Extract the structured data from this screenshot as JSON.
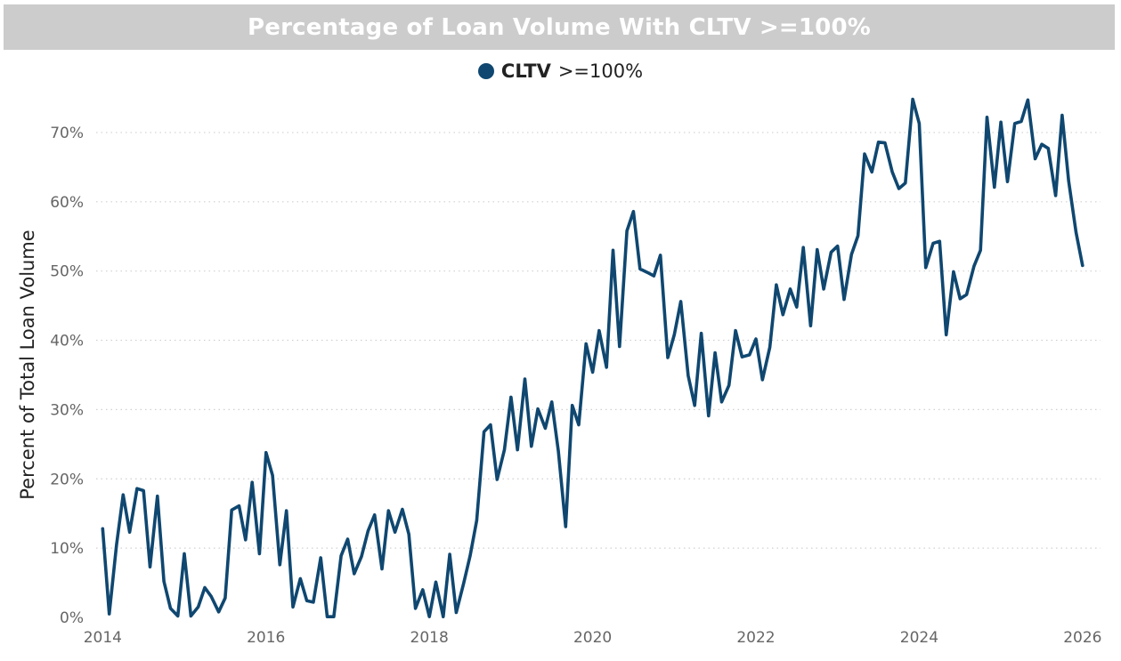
{
  "chart_data": {
    "type": "line",
    "title": "Percentage of Loan Volume With CLTV >=100%",
    "xlabel": "",
    "ylabel": "Percent of Total Loan Volume",
    "xlim": [
      2013.92,
      2026.22
    ],
    "ylim": [
      0,
      75
    ],
    "x_ticks": [
      "2014",
      "2016",
      "2018",
      "2020",
      "2022",
      "2024",
      "2026"
    ],
    "y_ticks": [
      "0%",
      "10%",
      "20%",
      "30%",
      "40%",
      "50%",
      "60%",
      "70%"
    ],
    "grid": "horizontal-dotted",
    "legend": {
      "position": "top-center",
      "bold_part": "CLTV",
      "rest": ">=100%"
    },
    "colors": {
      "line": "#0f4770",
      "title_bar": "#cccccc",
      "grid": "#d0d0d0"
    },
    "series": [
      {
        "name": "CLTV >=100%",
        "x": [
          2014.0,
          2014.08,
          2014.17,
          2014.25,
          2014.33,
          2014.42,
          2014.5,
          2014.58,
          2014.67,
          2014.75,
          2014.83,
          2014.92,
          2015.0,
          2015.08,
          2015.17,
          2015.25,
          2015.33,
          2015.42,
          2015.5,
          2015.58,
          2015.67,
          2015.75,
          2015.83,
          2015.92,
          2016.0,
          2016.08,
          2016.17,
          2016.25,
          2016.33,
          2016.42,
          2016.5,
          2016.58,
          2016.67,
          2016.75,
          2016.83,
          2016.92,
          2017.0,
          2017.08,
          2017.17,
          2017.25,
          2017.33,
          2017.42,
          2017.5,
          2017.58,
          2017.67,
          2017.75,
          2017.83,
          2017.92,
          2018.0,
          2018.08,
          2018.17,
          2018.25,
          2018.33,
          2018.42,
          2018.5,
          2018.58,
          2018.67,
          2018.75,
          2018.83,
          2018.92,
          2019.0,
          2019.08,
          2019.17,
          2019.25,
          2019.33,
          2019.42,
          2019.5,
          2019.58,
          2019.67,
          2019.75,
          2019.83,
          2019.92,
          2020.0,
          2020.08,
          2020.17,
          2020.25,
          2020.33,
          2020.42,
          2020.5,
          2020.58,
          2020.67,
          2020.75,
          2020.83,
          2020.92,
          2021.0,
          2021.08,
          2021.17,
          2021.25,
          2021.33,
          2021.42,
          2021.5,
          2021.58,
          2021.67,
          2021.75,
          2021.83,
          2021.92,
          2022.0,
          2022.08,
          2022.17,
          2022.25,
          2022.33,
          2022.42,
          2022.5,
          2022.58,
          2022.67,
          2022.75,
          2022.83,
          2022.92,
          2023.0,
          2023.08,
          2023.17,
          2023.25,
          2023.33,
          2023.42,
          2023.5,
          2023.58,
          2023.67,
          2023.75,
          2023.83,
          2023.92,
          2024.0,
          2024.08,
          2024.17,
          2024.25,
          2024.33,
          2024.42,
          2024.5,
          2024.58,
          2024.67,
          2024.75,
          2024.83,
          2024.92,
          2025.0,
          2025.08,
          2025.17,
          2025.25,
          2025.33,
          2025.42,
          2025.5,
          2025.58,
          2025.67,
          2025.75,
          2025.83,
          2025.92,
          2026.0
        ],
        "values": [
          12.8,
          0.5,
          10.5,
          17.7,
          12.3,
          18.6,
          18.3,
          7.3,
          17.5,
          5.2,
          1.3,
          0.2,
          9.2,
          0.2,
          1.5,
          4.3,
          3.0,
          0.8,
          2.8,
          15.5,
          16.1,
          11.2,
          19.5,
          9.2,
          23.8,
          20.5,
          7.6,
          15.4,
          1.5,
          5.6,
          2.4,
          2.2,
          8.6,
          0.1,
          0.1,
          8.9,
          11.3,
          6.3,
          8.8,
          12.5,
          14.8,
          7.0,
          15.4,
          12.3,
          15.6,
          12.0,
          1.3,
          4.0,
          0.1,
          5.1,
          0.1,
          9.1,
          0.7,
          4.9,
          8.9,
          14.0,
          26.8,
          27.8,
          19.9,
          24.2,
          31.8,
          24.2,
          34.4,
          24.7,
          30.1,
          27.3,
          31.1,
          24.0,
          13.1,
          30.6,
          27.8,
          39.5,
          35.4,
          41.4,
          36.1,
          53.0,
          39.1,
          55.8,
          58.6,
          50.3,
          49.8,
          49.3,
          52.3,
          37.5,
          40.8,
          45.6,
          34.9,
          30.6,
          41.0,
          29.1,
          38.2,
          31.1,
          33.5,
          41.4,
          37.6,
          37.9,
          40.2,
          34.3,
          39.0,
          48.0,
          43.7,
          47.4,
          44.8,
          53.4,
          42.1,
          53.1,
          47.4,
          52.7,
          53.6,
          45.9,
          52.4,
          55.1,
          66.9,
          64.3,
          68.6,
          68.5,
          64.3,
          61.9,
          62.7,
          74.8,
          71.3,
          50.5,
          54.0,
          54.3,
          40.8,
          49.9,
          46.0,
          46.6,
          50.7,
          53.0,
          72.2,
          62.1,
          71.5,
          62.9,
          71.3,
          71.6,
          74.7,
          66.2,
          68.3,
          67.7,
          60.9,
          72.5,
          63.0,
          55.6,
          50.8
        ]
      }
    ]
  }
}
